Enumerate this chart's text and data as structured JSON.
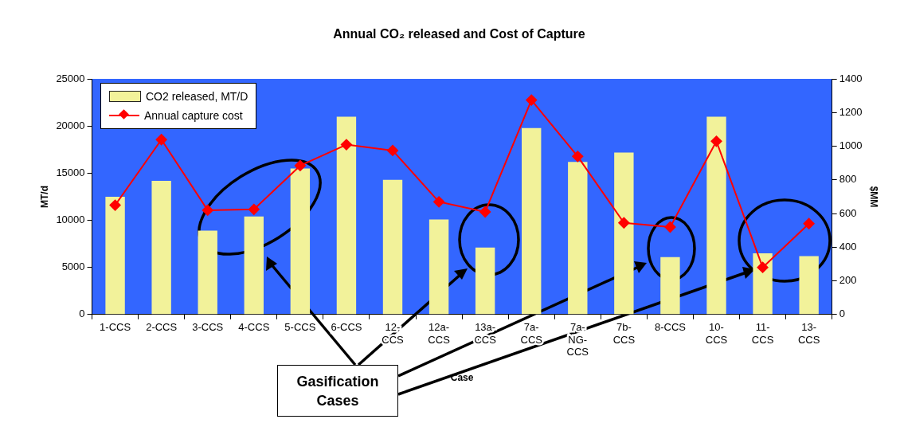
{
  "chart_data": {
    "type": "bar",
    "title": "Annual CO₂ released and Cost of Capture",
    "categories": [
      "1-CCS",
      "2-CCS",
      "3-CCS",
      "4-CCS",
      "5-CCS",
      "6-CCS",
      "12-CCS",
      "12a-CCS",
      "13a-CCS",
      "7a-CCS",
      "7a-NG-CCS",
      "7b-CCS",
      "8-CCS",
      "10-CCS",
      "11-CCS",
      "13-CCS"
    ],
    "series": [
      {
        "name": "CO2 released, MT/D",
        "color": "#f2f29a",
        "values": [
          12500,
          14200,
          8900,
          10400,
          15500,
          21000,
          14300,
          10100,
          7100,
          19800,
          16200,
          17200,
          6100,
          21000,
          6500,
          6200
        ]
      },
      {
        "name": "Annual capture cost",
        "type": "line",
        "axis": "y2",
        "color": "#ff0000",
        "values": [
          650,
          1040,
          620,
          625,
          885,
          1010,
          975,
          670,
          610,
          1275,
          940,
          545,
          520,
          1030,
          280,
          540
        ]
      }
    ],
    "xlabel": "Case",
    "ylabel": "MT/d",
    "y2label": "$MM",
    "ylim": [
      0,
      25000
    ],
    "yticks": [
      0,
      5000,
      10000,
      15000,
      20000,
      25000
    ],
    "y2lim": [
      0,
      1400
    ],
    "y2ticks": [
      0,
      200,
      400,
      600,
      800,
      1000,
      1200,
      1400
    ],
    "annotations": [
      "Gasification Cases"
    ],
    "legend": "top left",
    "marker": "diamond",
    "grid": false
  }
}
